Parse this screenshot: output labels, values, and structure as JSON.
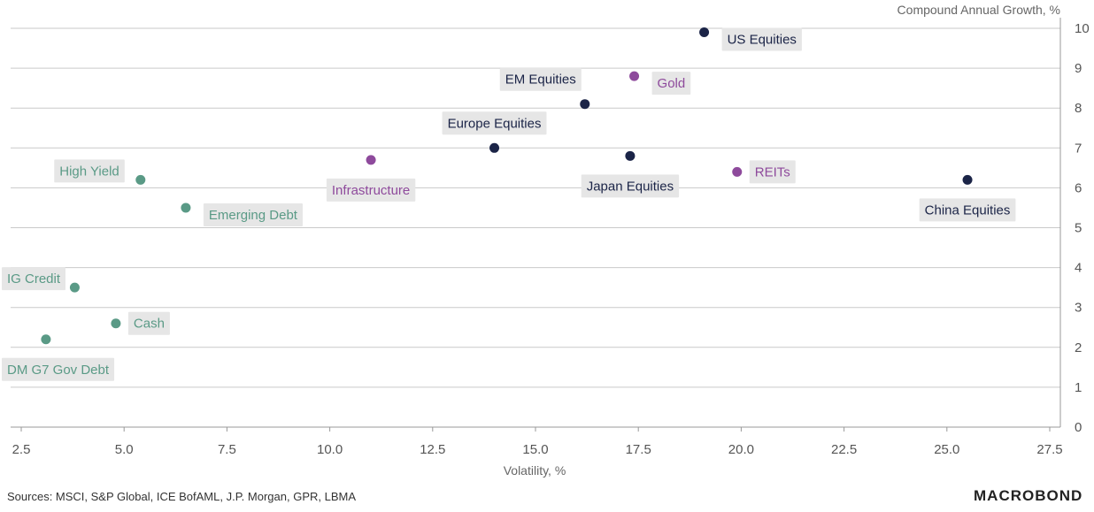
{
  "chart_data": {
    "type": "scatter",
    "xlabel": "Volatility, %",
    "ylabel": "Compound Annual Growth, %",
    "xlim": [
      2.5,
      27.5
    ],
    "ylim": [
      0,
      10
    ],
    "x_ticks": [
      "2.5",
      "5.0",
      "7.5",
      "10.0",
      "12.5",
      "15.0",
      "17.5",
      "20.0",
      "22.5",
      "25.0",
      "27.5"
    ],
    "y_ticks": [
      "0",
      "1",
      "2",
      "3",
      "4",
      "5",
      "6",
      "7",
      "8",
      "9",
      "10"
    ],
    "grid": "horizontal",
    "colors": {
      "equities": "#1b2447",
      "alternatives": "#8e4a9c",
      "fixed_income": "#5a9a86"
    },
    "points": [
      {
        "label": "US Equities",
        "x": 19.1,
        "y": 9.9,
        "group": "equities",
        "label_pos": "below-right"
      },
      {
        "label": "EM Equities",
        "x": 16.2,
        "y": 8.1,
        "group": "equities",
        "label_pos": "above-left"
      },
      {
        "label": "Gold",
        "x": 17.4,
        "y": 8.8,
        "group": "alternatives",
        "label_pos": "below-right"
      },
      {
        "label": "Europe Equities",
        "x": 14.0,
        "y": 7.0,
        "group": "equities",
        "label_pos": "above"
      },
      {
        "label": "Japan Equities",
        "x": 17.3,
        "y": 6.8,
        "group": "equities",
        "label_pos": "below"
      },
      {
        "label": "REITs",
        "x": 19.9,
        "y": 6.4,
        "group": "alternatives",
        "label_pos": "right"
      },
      {
        "label": "China Equities",
        "x": 25.5,
        "y": 6.2,
        "group": "equities",
        "label_pos": "below"
      },
      {
        "label": "Infrastructure",
        "x": 11.0,
        "y": 6.7,
        "group": "alternatives",
        "label_pos": "below"
      },
      {
        "label": "High Yield",
        "x": 5.4,
        "y": 6.2,
        "group": "fixed_income",
        "label_pos": "left"
      },
      {
        "label": "Emerging Debt",
        "x": 6.5,
        "y": 5.5,
        "group": "fixed_income",
        "label_pos": "below-right"
      },
      {
        "label": "IG Credit",
        "x": 3.8,
        "y": 3.5,
        "group": "fixed_income",
        "label_pos": "left"
      },
      {
        "label": "Cash",
        "x": 4.8,
        "y": 2.6,
        "group": "fixed_income",
        "label_pos": "right"
      },
      {
        "label": "DM G7 Gov Debt",
        "x": 3.1,
        "y": 2.2,
        "group": "fixed_income",
        "label_pos": "below"
      }
    ]
  },
  "footer": {
    "sources": "Sources: MSCI, S&P Global, ICE BofAML, J.P. Morgan, GPR, LBMA",
    "brand": "MACROBOND"
  }
}
